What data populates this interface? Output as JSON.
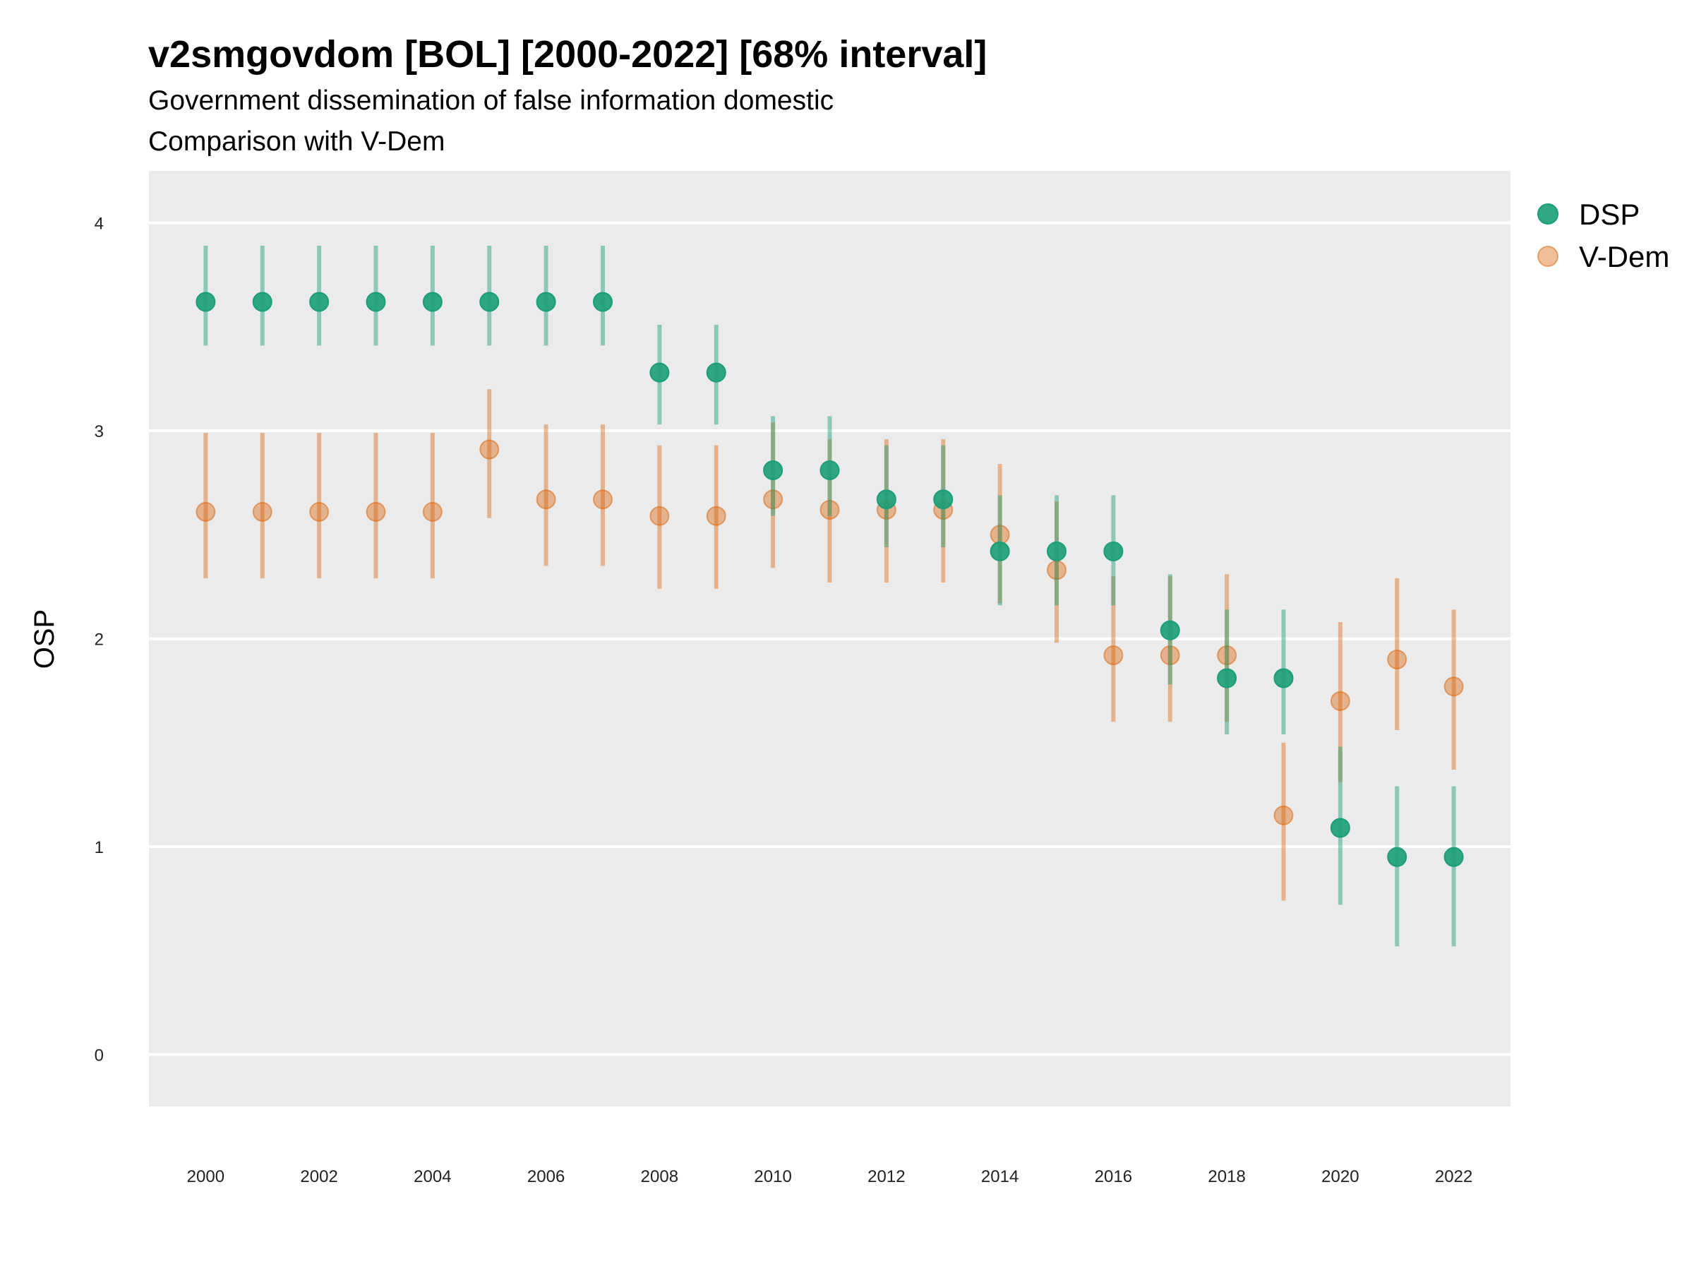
{
  "chart_data": {
    "type": "scatter",
    "title": "v2smgovdom [BOL] [2000-2022] [68% interval]",
    "subtitle_lines": [
      "Government dissemination of false information domestic",
      "Comparison with V-Dem"
    ],
    "xlabel": "",
    "ylabel": "OSP",
    "xlim": [
      1999,
      2023
    ],
    "ylim": [
      -0.25,
      4.25
    ],
    "x_ticks": [
      2000,
      2002,
      2004,
      2006,
      2008,
      2010,
      2012,
      2014,
      2016,
      2018,
      2020,
      2022
    ],
    "y_ticks": [
      0,
      1,
      2,
      3,
      4
    ],
    "grid": true,
    "legend_position": "right-top",
    "x": [
      2000,
      2001,
      2002,
      2003,
      2004,
      2005,
      2006,
      2007,
      2008,
      2009,
      2010,
      2011,
      2012,
      2013,
      2014,
      2015,
      2016,
      2017,
      2018,
      2019,
      2020,
      2021,
      2022
    ],
    "series": [
      {
        "name": "DSP",
        "color": "#1b9e77",
        "values": [
          3.62,
          3.62,
          3.62,
          3.62,
          3.62,
          3.62,
          3.62,
          3.62,
          3.28,
          3.28,
          2.81,
          2.81,
          2.67,
          2.67,
          2.42,
          2.42,
          2.42,
          2.04,
          1.81,
          1.81,
          1.09,
          0.95,
          0.95
        ],
        "lower": [
          3.41,
          3.41,
          3.41,
          3.41,
          3.41,
          3.41,
          3.41,
          3.41,
          3.03,
          3.03,
          2.59,
          2.59,
          2.44,
          2.44,
          2.16,
          2.16,
          2.16,
          1.78,
          1.54,
          1.54,
          0.72,
          0.52,
          0.52
        ],
        "upper": [
          3.89,
          3.89,
          3.89,
          3.89,
          3.89,
          3.89,
          3.89,
          3.89,
          3.51,
          3.51,
          3.07,
          3.07,
          2.93,
          2.93,
          2.69,
          2.69,
          2.69,
          2.31,
          2.14,
          2.14,
          1.48,
          1.29,
          1.29
        ]
      },
      {
        "name": "V-Dem",
        "color": "#d95f02",
        "values": [
          2.61,
          2.61,
          2.61,
          2.61,
          2.61,
          2.91,
          2.67,
          2.67,
          2.59,
          2.59,
          2.67,
          2.62,
          2.62,
          2.62,
          2.5,
          2.33,
          1.92,
          1.92,
          1.92,
          1.15,
          1.7,
          1.9,
          1.77
        ],
        "lower": [
          2.29,
          2.29,
          2.29,
          2.29,
          2.29,
          2.58,
          2.35,
          2.35,
          2.24,
          2.24,
          2.34,
          2.27,
          2.27,
          2.27,
          2.17,
          1.98,
          1.6,
          1.6,
          1.6,
          0.74,
          1.31,
          1.56,
          1.37
        ],
        "upper": [
          2.99,
          2.99,
          2.99,
          2.99,
          2.99,
          3.2,
          3.03,
          3.03,
          2.93,
          2.93,
          3.04,
          2.96,
          2.96,
          2.96,
          2.84,
          2.66,
          2.3,
          2.3,
          2.31,
          1.5,
          2.08,
          2.29,
          2.14
        ]
      }
    ]
  }
}
